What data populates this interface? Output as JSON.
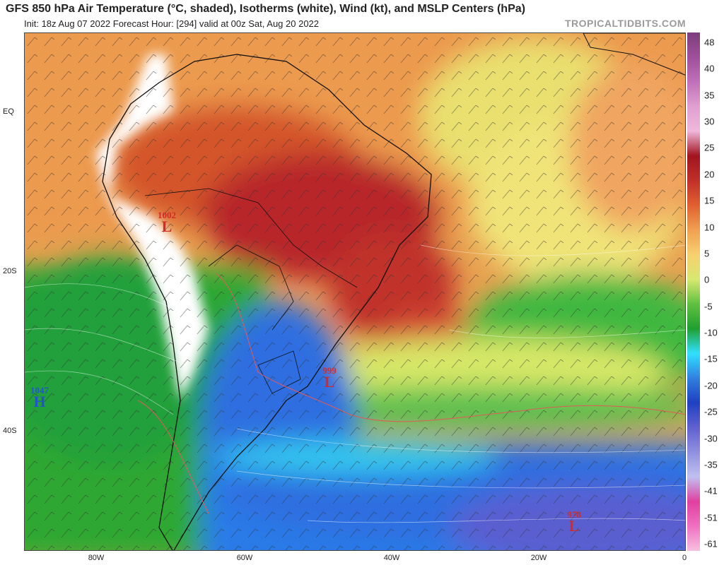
{
  "header": {
    "title": "GFS 850 hPa Air Temperature (°C, shaded), Isotherms (white), Wind (kt), and MSLP Centers (hPa)",
    "subtitle": "Init: 18z Aug 07 2022   Forecast Hour: [294]   valid at 00z Sat, Aug 20 2022",
    "brand": "TROPICALTIDBITS.COM"
  },
  "map": {
    "lat_labels": [
      "EQ",
      "20S",
      "40S"
    ],
    "lon_labels": [
      "80W",
      "60W",
      "40W",
      "20W",
      "0"
    ],
    "pressure_centers": [
      {
        "type": "L",
        "value": "1002",
        "color": "#d42a2a"
      },
      {
        "type": "L",
        "value": "999",
        "color": "#d42a2a"
      },
      {
        "type": "H",
        "value": "1047",
        "color": "#2255cc"
      },
      {
        "type": "L",
        "value": "978",
        "color": "#d42a2a"
      }
    ]
  },
  "colorbar": {
    "labels": [
      "48",
      "40",
      "35",
      "30",
      "25",
      "20",
      "15",
      "10",
      "5",
      "0",
      "-5",
      "-10",
      "-15",
      "-20",
      "-25",
      "-30",
      "-35",
      "-41",
      "-51",
      "-61"
    ],
    "colors": [
      "#7b3f7b",
      "#a0509a",
      "#c070b8",
      "#e0a0d0",
      "#f0b8dc",
      "#a0141e",
      "#c0302a",
      "#e06030",
      "#f0a050",
      "#f7d070",
      "#d8e870",
      "#60c040",
      "#20a030",
      "#30e0ff",
      "#3080e0",
      "#2040c0",
      "#6060d0",
      "#9090e0",
      "#c0c0f0",
      "#e040a0",
      "#f070c0",
      "#f8c0e0"
    ]
  }
}
